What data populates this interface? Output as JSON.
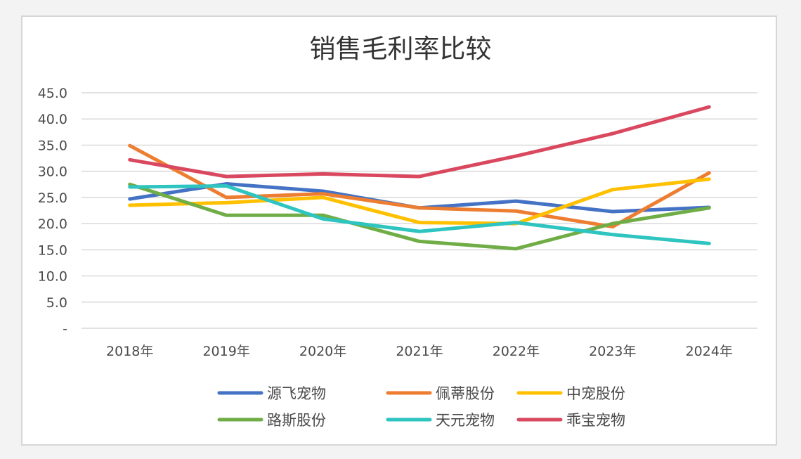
{
  "chart_data": {
    "type": "line",
    "title": "销售毛利率比较",
    "xlabel": "",
    "ylabel": "",
    "categories": [
      "2018年",
      "2019年",
      "2020年",
      "2021年",
      "2022年",
      "2023年",
      "2024年"
    ],
    "y_tick_labels": [
      "-",
      "5.0",
      "10.0",
      "15.0",
      "20.0",
      "25.0",
      "30.0",
      "35.0",
      "40.0",
      "45.0"
    ],
    "ylim": [
      0,
      45
    ],
    "grid": true,
    "legend_position": "bottom",
    "series": [
      {
        "name": "源飞宠物",
        "color": "#4472c4",
        "values": [
          24.7,
          27.6,
          26.2,
          23.0,
          24.3,
          22.3,
          23.1
        ]
      },
      {
        "name": "佩蒂股份",
        "color": "#ed7d31",
        "values": [
          34.9,
          25.0,
          25.7,
          23.0,
          22.4,
          19.4,
          29.7
        ]
      },
      {
        "name": "中宠股份",
        "color": "#ffc000",
        "values": [
          23.5,
          24.0,
          25.0,
          20.2,
          20.0,
          26.5,
          28.5
        ]
      },
      {
        "name": "路斯股份",
        "color": "#70ad47",
        "values": [
          27.5,
          21.6,
          21.6,
          16.6,
          15.2,
          20.0,
          23.0
        ]
      },
      {
        "name": "天元宠物",
        "color": "#2ec4c0",
        "values": [
          27.0,
          27.2,
          20.9,
          18.5,
          20.2,
          17.9,
          16.2
        ]
      },
      {
        "name": "乖宝宠物",
        "color": "#d9485f",
        "values": [
          32.2,
          29.0,
          29.5,
          29.0,
          32.9,
          37.2,
          42.3
        ]
      }
    ]
  }
}
